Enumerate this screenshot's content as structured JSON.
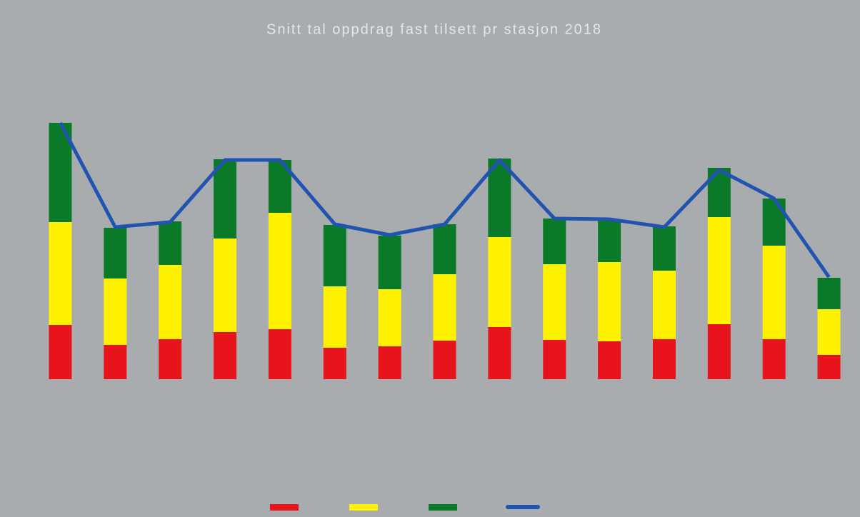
{
  "chart_data": {
    "type": "bar",
    "stacked": true,
    "title": "Snitt tal oppdrag fast tilsett pr stasjon 2018",
    "categories": [
      null,
      null,
      null,
      null,
      null,
      null,
      null,
      null,
      null,
      null,
      null,
      null,
      null,
      null,
      null
    ],
    "series": [
      {
        "color": "#e8141b",
        "values": [
          76,
          48,
          56,
          66,
          70,
          44,
          46,
          54,
          73,
          55,
          53,
          56,
          77,
          56,
          34
        ]
      },
      {
        "color": "#fff200",
        "values": [
          144,
          93,
          104,
          131,
          163,
          86,
          80,
          93,
          126,
          106,
          111,
          96,
          150,
          131,
          64
        ]
      },
      {
        "color": "#0a7a28",
        "values": [
          139,
          71,
          61,
          111,
          74,
          86,
          75,
          70,
          110,
          64,
          58,
          62,
          69,
          66,
          44
        ]
      },
      {
        "type": "line",
        "color": "#2054b0",
        "values": [
          359,
          213,
          220,
          307,
          307,
          217,
          202,
          217,
          307,
          225,
          224,
          213,
          293,
          253,
          143
        ]
      }
    ],
    "ylim": [
      0,
      400
    ],
    "legend": "bottom"
  }
}
